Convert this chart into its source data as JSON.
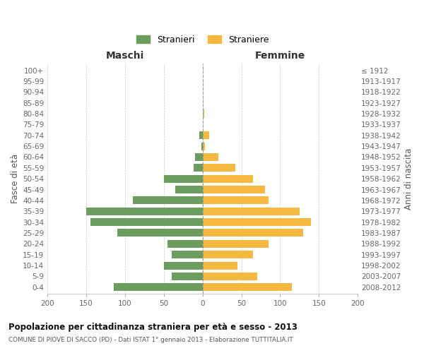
{
  "age_groups": [
    "100+",
    "95-99",
    "90-94",
    "85-89",
    "80-84",
    "75-79",
    "70-74",
    "65-69",
    "60-64",
    "55-59",
    "50-54",
    "45-49",
    "40-44",
    "35-39",
    "30-34",
    "25-29",
    "20-24",
    "15-19",
    "10-14",
    "5-9",
    "0-4"
  ],
  "birth_years": [
    "≤ 1912",
    "1913-1917",
    "1918-1922",
    "1923-1927",
    "1928-1932",
    "1933-1937",
    "1938-1942",
    "1943-1947",
    "1948-1952",
    "1953-1957",
    "1958-1962",
    "1963-1967",
    "1968-1972",
    "1973-1977",
    "1978-1982",
    "1983-1987",
    "1988-1992",
    "1993-1997",
    "1998-2002",
    "2003-2007",
    "2008-2012"
  ],
  "males": [
    0,
    0,
    0,
    0,
    0,
    0,
    4,
    2,
    10,
    12,
    50,
    35,
    90,
    150,
    145,
    110,
    45,
    40,
    50,
    40,
    115
  ],
  "females": [
    0,
    0,
    0,
    0,
    2,
    0,
    8,
    3,
    20,
    42,
    65,
    80,
    85,
    125,
    140,
    130,
    85,
    65,
    45,
    70,
    115
  ],
  "stranieri_color": "#6b9e5e",
  "straniere_color": "#f5b941",
  "center_line_color": "#888888",
  "grid_color": "#cccccc",
  "bg_color": "#ffffff",
  "title": "Popolazione per cittadinanza straniera per età e sesso - 2013",
  "subtitle": "COMUNE DI PIOVE DI SACCO (PD) - Dati ISTAT 1° gennaio 2013 - Elaborazione TUTTITALIA.IT",
  "xlabel_left": "Maschi",
  "xlabel_right": "Femmine",
  "ylabel_left": "Fasce di età",
  "ylabel_right": "Anni di nascita",
  "xlim": 200,
  "legend_stranieri": "Stranieri",
  "legend_straniere": "Straniere"
}
